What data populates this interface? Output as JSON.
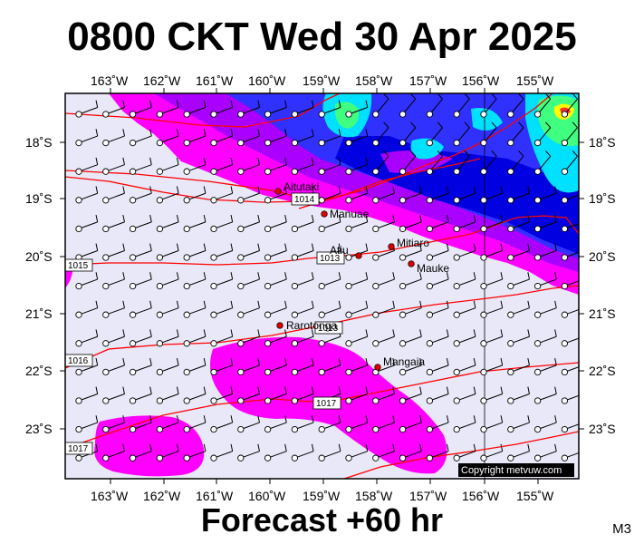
{
  "header": {
    "title": "0800 CKT Wed 30 Apr 2025"
  },
  "footer": {
    "forecast": "Forecast +60 hr",
    "code": "M3",
    "copyright": "Copyright metvuw.com"
  },
  "axes": {
    "lon_labels": [
      "163˚W",
      "162˚W",
      "161˚W",
      "160˚W",
      "159˚W",
      "158˚W",
      "157˚W",
      "156˚W",
      "155˚W"
    ],
    "lat_labels": [
      "18˚S",
      "19˚S",
      "20˚S",
      "21˚S",
      "22˚S",
      "23˚S"
    ]
  },
  "places": [
    {
      "name": "Aitutaki"
    },
    {
      "name": "Manuae"
    },
    {
      "name": "Mitiaro"
    },
    {
      "name": "Atiu"
    },
    {
      "name": "Mauke"
    },
    {
      "name": "Rarotonga"
    },
    {
      "name": "Mangaia"
    }
  ],
  "isobars": [
    "1014",
    "1015",
    "1016",
    "1017",
    "1013",
    "1013",
    "1017"
  ],
  "colors": {
    "background": "#e8e8f8",
    "magenta": "#ff00ff",
    "violet": "#aa00ff",
    "blue": "#3030ff",
    "deep_blue": "#0000e0",
    "cyan": "#00e0ff",
    "green": "#40ff80",
    "isobar": "#ff0000"
  }
}
